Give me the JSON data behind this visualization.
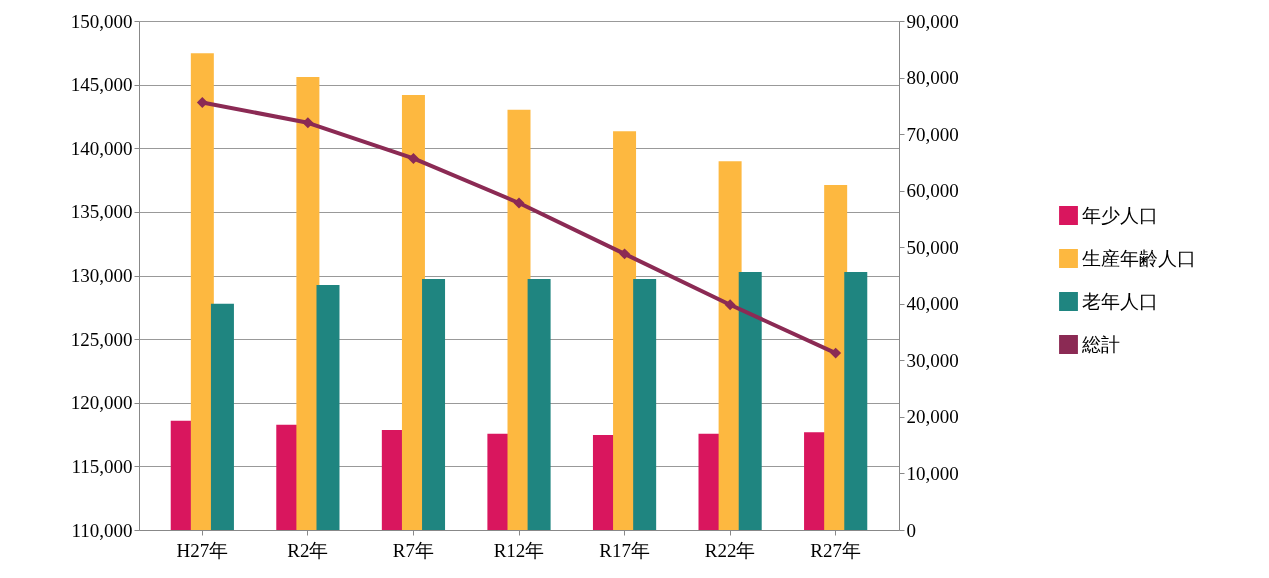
{
  "chart_data": {
    "type": "bar",
    "categories": [
      "H27年",
      "R2年",
      "R7年",
      "R12年",
      "R17年",
      "R22年",
      "R27年"
    ],
    "series": [
      {
        "name": "年少人口",
        "color": "#d9165e",
        "axis": "y2",
        "values": [
          19300,
          18600,
          17700,
          17000,
          16800,
          17000,
          17300
        ]
      },
      {
        "name": "生産年齢人口",
        "color": "#fdb840",
        "axis": "y2",
        "values": [
          84300,
          80100,
          76900,
          74300,
          70500,
          65200,
          61000
        ]
      },
      {
        "name": "老年人口",
        "color": "#1f8580",
        "axis": "y2",
        "values": [
          40000,
          43300,
          44400,
          44400,
          44400,
          45600,
          45600
        ]
      },
      {
        "name": "総計",
        "color": "#8b2a54",
        "type": "line",
        "marker": "diamond",
        "line_style": "solid",
        "values": [
          143600,
          142000,
          139200,
          135700,
          131700,
          127700,
          123900
        ]
      }
    ],
    "ylim": [
      110000,
      150000
    ],
    "yticks": [
      {
        "value": 110000,
        "label": "110,000"
      },
      {
        "value": 115000,
        "label": "115,000"
      },
      {
        "value": 120000,
        "label": "120,000"
      },
      {
        "value": 125000,
        "label": "125,000"
      },
      {
        "value": 130000,
        "label": "130,000"
      },
      {
        "value": 135000,
        "label": "135,000"
      },
      {
        "value": 140000,
        "label": "140,000"
      },
      {
        "value": 145000,
        "label": "145,000"
      },
      {
        "value": 150000,
        "label": "150,000"
      }
    ],
    "y2lim": [
      0,
      90000
    ],
    "y2ticks": [
      0,
      {
        "value": 10000,
        "label": "10,000"
      },
      {
        "value": 20000,
        "label": "20,000"
      },
      {
        "value": 30000,
        "label": "30,000"
      },
      {
        "value": 40000,
        "label": "40,000"
      },
      {
        "value": 50000,
        "label": "50,000"
      },
      {
        "value": 60000,
        "label": "60,000"
      },
      {
        "value": 70000,
        "label": "70,000"
      },
      {
        "value": 80000,
        "label": "80,000"
      },
      {
        "value": 90000,
        "label": "90,000"
      }
    ],
    "grid": "y",
    "legend": "right"
  }
}
